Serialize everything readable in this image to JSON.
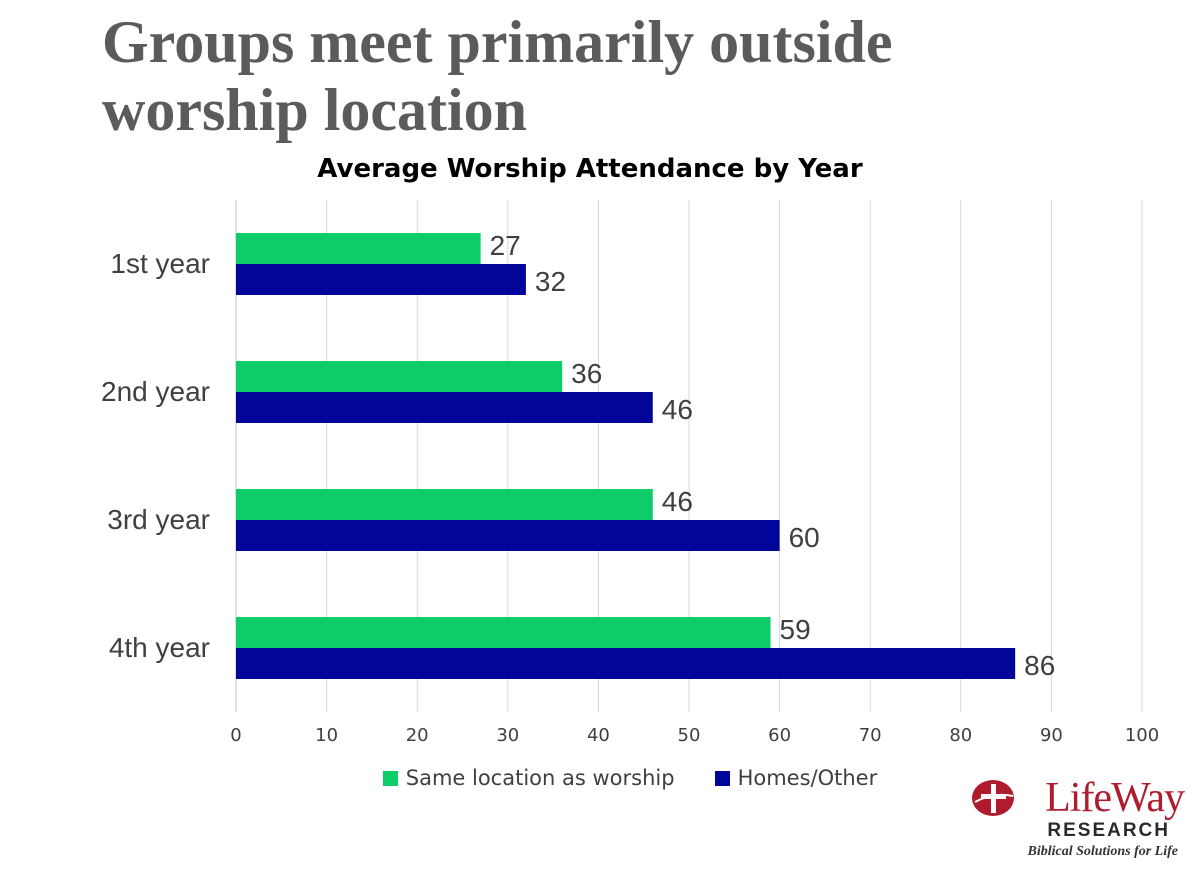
{
  "slide": {
    "title": "Groups meet primarily outside worship location"
  },
  "chart_data": {
    "type": "bar",
    "orientation": "horizontal",
    "title": "Average Worship Attendance by Year",
    "categories": [
      "1st year",
      "2nd year",
      "3rd year",
      "4th year"
    ],
    "series": [
      {
        "name": "Same location as worship",
        "values": [
          27,
          36,
          46,
          59
        ],
        "color": "#0ccd68"
      },
      {
        "name": "Homes/Other",
        "values": [
          32,
          46,
          60,
          86
        ],
        "color": "#02059a"
      }
    ],
    "xlim": [
      0,
      100
    ],
    "ticks": [
      "0",
      "10",
      "20",
      "30",
      "40",
      "50",
      "60",
      "70",
      "80",
      "90",
      "100"
    ],
    "grid": "vertical",
    "legend": "bottom",
    "data_labels": true
  },
  "logo": {
    "name": "LifeWay",
    "sub": "RESEARCH",
    "tagline": "Biblical Solutions for Life"
  },
  "colors": {
    "title": "#5b5b5b",
    "grid": "#d9d9d9",
    "label": "#404040",
    "brand_red": "#b01c2e"
  }
}
